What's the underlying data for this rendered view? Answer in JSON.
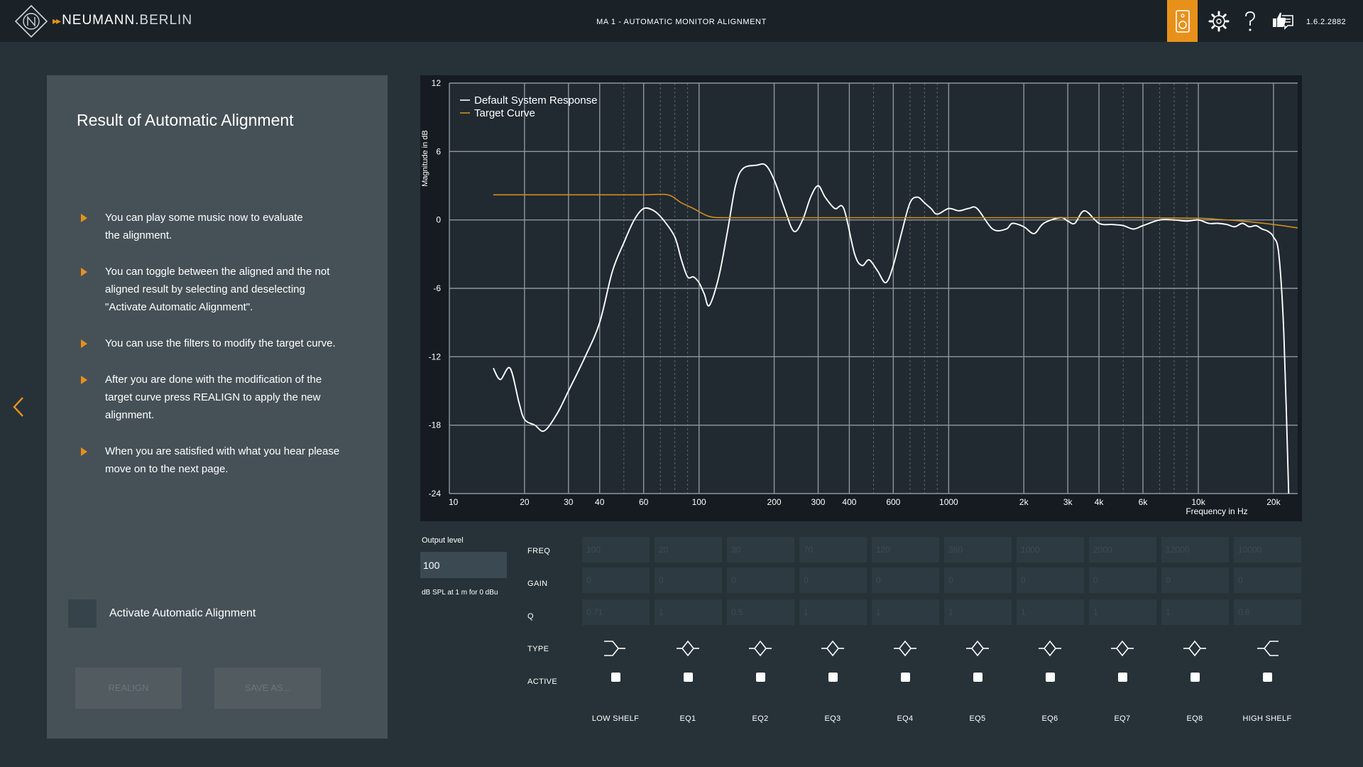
{
  "header": {
    "brand_bold": "NEUMANN.",
    "brand_light": "BERLIN",
    "app_title": "MA 1 - AUTOMATIC MONITOR ALIGNMENT",
    "version": "1.6.2.2882",
    "active_color": "#e8911a",
    "icons": [
      "speaker-icon",
      "gear-icon",
      "help-icon",
      "feedback-icon"
    ]
  },
  "left_panel": {
    "title": "Result of Automatic Alignment",
    "bullets": [
      "You can play some music now to evaluate\nthe alignment.",
      "You can toggle between the aligned and the not\naligned result by selecting and deselecting\n\"Activate Automatic Alignment\".",
      "You can use the filters to modify the target curve.",
      "After you are done with the modification of the\ntarget curve press REALIGN to apply the new\nalignment.",
      "When you are satisfied with what you hear please\nmove on to the next page."
    ],
    "activate_label": "Activate Automatic Alignment",
    "activate_checked": false,
    "realign_label": "REALIGN",
    "save_label": "SAVE AS..."
  },
  "chart_data": {
    "type": "line",
    "xlabel": "Frequency in Hz",
    "ylabel": "Magnitude in dB",
    "x_scale": "log",
    "xlim": [
      10,
      25000
    ],
    "ylim": [
      -24,
      12
    ],
    "x_ticks": [
      10,
      20,
      30,
      40,
      60,
      100,
      200,
      300,
      400,
      600,
      1000,
      2000,
      3000,
      4000,
      6000,
      10000,
      20000
    ],
    "x_tick_labels": [
      "10",
      "20",
      "30",
      "40",
      "60",
      "100",
      "200",
      "300",
      "400",
      "600",
      "1000",
      "2k",
      "3k",
      "4k",
      "6k",
      "10k",
      "20k"
    ],
    "y_ticks": [
      12,
      6,
      0,
      -6,
      -12,
      -18,
      -24
    ],
    "y_tick_labels": [
      "12",
      "6",
      "0",
      "-6",
      "-12",
      "-18",
      "-24"
    ],
    "grid": true,
    "legend": "top-left",
    "series": [
      {
        "name": "Default System Response",
        "color": "#ffffff",
        "points": [
          [
            15,
            -13
          ],
          [
            16,
            -14
          ],
          [
            17.5,
            -13
          ],
          [
            19,
            -16
          ],
          [
            20,
            -17.5
          ],
          [
            22,
            -18
          ],
          [
            24,
            -18.5
          ],
          [
            27,
            -17
          ],
          [
            30,
            -15
          ],
          [
            35,
            -12
          ],
          [
            40,
            -9
          ],
          [
            45,
            -4.5
          ],
          [
            50,
            -2
          ],
          [
            55,
            0
          ],
          [
            60,
            1
          ],
          [
            66,
            0.8
          ],
          [
            72,
            0
          ],
          [
            80,
            -1.5
          ],
          [
            85,
            -3.5
          ],
          [
            90,
            -5
          ],
          [
            95,
            -5
          ],
          [
            100,
            -5.5
          ],
          [
            105,
            -6.5
          ],
          [
            110,
            -7.5
          ],
          [
            120,
            -5
          ],
          [
            130,
            -1
          ],
          [
            140,
            3
          ],
          [
            150,
            4.5
          ],
          [
            170,
            4.8
          ],
          [
            185,
            4.8
          ],
          [
            200,
            3.5
          ],
          [
            220,
            1
          ],
          [
            240,
            -1
          ],
          [
            260,
            0
          ],
          [
            280,
            2
          ],
          [
            300,
            3
          ],
          [
            320,
            2
          ],
          [
            350,
            1
          ],
          [
            380,
            1
          ],
          [
            420,
            -3
          ],
          [
            450,
            -4
          ],
          [
            480,
            -3.5
          ],
          [
            520,
            -4.5
          ],
          [
            560,
            -5.5
          ],
          [
            600,
            -4
          ],
          [
            650,
            -1
          ],
          [
            700,
            1.5
          ],
          [
            750,
            2
          ],
          [
            800,
            1.5
          ],
          [
            850,
            1
          ],
          [
            900,
            0.5
          ],
          [
            1000,
            1
          ],
          [
            1100,
            0.8
          ],
          [
            1200,
            1
          ],
          [
            1300,
            1
          ],
          [
            1500,
            -0.8
          ],
          [
            1700,
            -0.8
          ],
          [
            1800,
            -0.3
          ],
          [
            2000,
            -0.6
          ],
          [
            2200,
            -1.2
          ],
          [
            2400,
            -0.3
          ],
          [
            2800,
            0.2
          ],
          [
            3000,
            -0.1
          ],
          [
            3200,
            -0.3
          ],
          [
            3500,
            0.8
          ],
          [
            4000,
            -0.3
          ],
          [
            4500,
            -0.4
          ],
          [
            5000,
            -0.5
          ],
          [
            5500,
            -0.8
          ],
          [
            6000,
            -0.5
          ],
          [
            7000,
            0
          ],
          [
            8000,
            0
          ],
          [
            9000,
            -0.1
          ],
          [
            10000,
            0
          ],
          [
            11000,
            -0.3
          ],
          [
            12000,
            -0.3
          ],
          [
            13000,
            -0.4
          ],
          [
            14000,
            -0.6
          ],
          [
            15000,
            -0.3
          ],
          [
            16000,
            -0.6
          ],
          [
            17000,
            -0.5
          ],
          [
            18000,
            -0.8
          ],
          [
            19000,
            -1
          ],
          [
            20000,
            -1.5
          ],
          [
            21000,
            -3
          ],
          [
            22000,
            -10
          ],
          [
            23000,
            -24
          ]
        ]
      },
      {
        "name": "Target Curve",
        "color": "#d18c1f",
        "points": [
          [
            15,
            2.2
          ],
          [
            20,
            2.2
          ],
          [
            40,
            2.2
          ],
          [
            60,
            2.2
          ],
          [
            75,
            2.2
          ],
          [
            85,
            1.5
          ],
          [
            95,
            1
          ],
          [
            110,
            0.3
          ],
          [
            130,
            0.2
          ],
          [
            200,
            0.2
          ],
          [
            500,
            0.2
          ],
          [
            1000,
            0.2
          ],
          [
            3000,
            0.2
          ],
          [
            6000,
            0.2
          ],
          [
            10000,
            0.15
          ],
          [
            12000,
            0.05
          ],
          [
            15000,
            -0.1
          ],
          [
            20000,
            -0.4
          ],
          [
            25000,
            -0.7
          ]
        ]
      }
    ]
  },
  "eq": {
    "output_level_label": "Output level",
    "output_level_value": "100",
    "output_unit": "dB SPL at 1 m for 0 dBu",
    "row_labels": {
      "freq": "FREQ",
      "gain": "GAIN",
      "q": "Q",
      "type": "TYPE",
      "active": "ACTIVE"
    },
    "bands": [
      {
        "name": "LOW SHELF",
        "freq": "100",
        "gain": "0",
        "q": "0.71",
        "type": "low-shelf-icon"
      },
      {
        "name": "EQ1",
        "freq": "20",
        "gain": "0",
        "q": "1",
        "type": "peak-icon"
      },
      {
        "name": "EQ2",
        "freq": "30",
        "gain": "0",
        "q": "0.5",
        "type": "peak-icon"
      },
      {
        "name": "EQ3",
        "freq": "70",
        "gain": "0",
        "q": "1",
        "type": "peak-icon"
      },
      {
        "name": "EQ4",
        "freq": "120",
        "gain": "0",
        "q": "1",
        "type": "peak-icon"
      },
      {
        "name": "EQ5",
        "freq": "360",
        "gain": "0",
        "q": "1",
        "type": "peak-icon"
      },
      {
        "name": "EQ6",
        "freq": "1000",
        "gain": "0",
        "q": "1",
        "type": "peak-icon"
      },
      {
        "name": "EQ7",
        "freq": "2000",
        "gain": "0",
        "q": "1",
        "type": "peak-icon"
      },
      {
        "name": "EQ8",
        "freq": "12000",
        "gain": "0",
        "q": "1",
        "type": "peak-icon"
      },
      {
        "name": "HIGH SHELF",
        "freq": "10000",
        "gain": "0",
        "q": "0.6",
        "type": "high-shelf-icon"
      }
    ]
  }
}
